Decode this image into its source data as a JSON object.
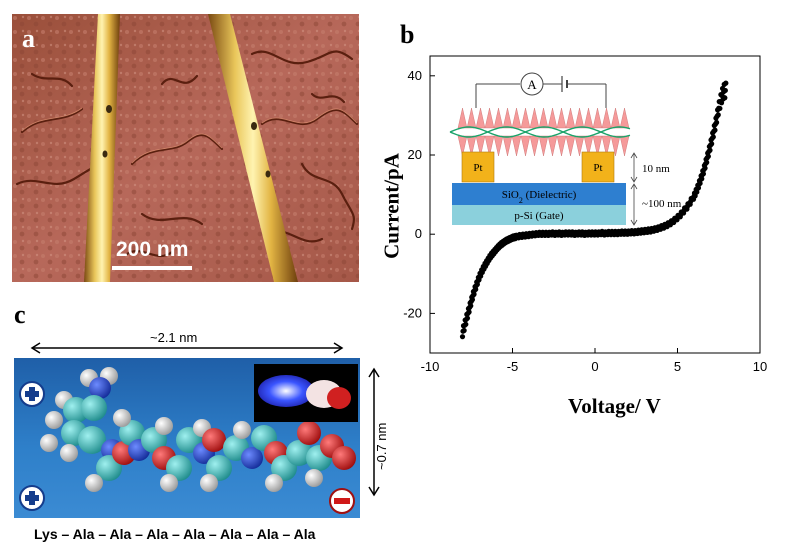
{
  "panels": {
    "a": {
      "label": "a",
      "scale_bar": "200 nm"
    },
    "b": {
      "label": "b"
    },
    "c": {
      "label": "c"
    }
  },
  "chart_data": {
    "type": "scatter",
    "xlabel": "Voltage/ V",
    "ylabel": "Current/pA",
    "xlim": [
      -10,
      10
    ],
    "ylim": [
      -30,
      45
    ],
    "xticks": [
      "-10",
      "-5",
      "0",
      "5",
      "10"
    ],
    "yticks": [
      "-20",
      "0",
      "20",
      "40"
    ],
    "series": [
      {
        "color": "#000000",
        "x": [
          -8.0,
          -7.9,
          -7.8,
          -7.7,
          -7.6,
          -7.5,
          -7.4,
          -7.3,
          -7.2,
          -7.1,
          -7.0,
          -6.9,
          -6.8,
          -6.7,
          -6.6,
          -6.5,
          -6.4,
          -6.3,
          -6.2,
          -6.1,
          -6.0,
          -5.9,
          -5.8,
          -5.7,
          -5.6,
          -5.5,
          -5.4,
          -5.3,
          -5.2,
          -5.1,
          -5.0,
          -4.9,
          -4.8,
          -4.6,
          -4.4,
          -4.2,
          -4.0,
          -3.8,
          -3.6,
          -3.4,
          -3.2,
          -3.0,
          -2.8,
          -2.6,
          -2.4,
          -2.2,
          -2.0,
          -1.8,
          -1.6,
          -1.4,
          -1.2,
          -1.0,
          -0.8,
          -0.6,
          -0.4,
          -0.2,
          0.0,
          0.2,
          0.4,
          0.6,
          0.8,
          1.0,
          1.2,
          1.4,
          1.6,
          1.8,
          2.0,
          2.2,
          2.4,
          2.6,
          2.8,
          3.0,
          3.2,
          3.4,
          3.6,
          3.8,
          4.0,
          4.2,
          4.4,
          4.6,
          4.8,
          5.0,
          5.2,
          5.4,
          5.6,
          5.8,
          6.0,
          6.1,
          6.2,
          6.3,
          6.4,
          6.5,
          6.6,
          6.7,
          6.8,
          6.9,
          7.0,
          7.1,
          7.2,
          7.3,
          7.4,
          7.5,
          7.6,
          7.7,
          7.8,
          7.9
        ],
        "y": [
          -24.5,
          -23.0,
          -21.5,
          -20.0,
          -18.5,
          -17.0,
          -15.5,
          -14.2,
          -13.0,
          -11.8,
          -10.7,
          -9.8,
          -8.9,
          -8.1,
          -7.4,
          -6.7,
          -6.0,
          -5.4,
          -4.9,
          -4.4,
          -3.9,
          -3.4,
          -3.0,
          -2.6,
          -2.3,
          -2.0,
          -1.7,
          -1.5,
          -1.3,
          -1.1,
          -0.9,
          -0.8,
          -0.7,
          -0.5,
          -0.4,
          -0.3,
          -0.2,
          -0.1,
          0.0,
          0.1,
          0.1,
          0.1,
          0.1,
          0.2,
          0.1,
          0.2,
          0.1,
          0.2,
          0.2,
          0.2,
          0.1,
          0.2,
          0.2,
          0.1,
          0.2,
          0.2,
          0.2,
          0.2,
          0.3,
          0.2,
          0.3,
          0.3,
          0.3,
          0.3,
          0.4,
          0.4,
          0.4,
          0.5,
          0.5,
          0.6,
          0.7,
          0.8,
          0.9,
          1.0,
          1.2,
          1.4,
          1.7,
          2.0,
          2.4,
          2.9,
          3.5,
          4.2,
          5.0,
          6.0,
          7.0,
          8.3,
          9.6,
          10.5,
          11.5,
          12.6,
          13.8,
          15.0,
          16.3,
          17.8,
          19.3,
          20.9,
          22.5,
          24.2,
          26.0,
          27.8,
          29.8,
          31.8,
          33.5,
          35.0,
          36.0,
          36.3
        ]
      }
    ]
  },
  "inset": {
    "meter": "A",
    "electrode_left": "Pt",
    "electrode_right": "Pt",
    "dielectric": "SiO",
    "dielectric_sub": "2",
    "dielectric_suffix": " (Dielectric)",
    "gate": "p-Si (Gate)",
    "dim_10": "10 nm",
    "dim_100": "~100 nm"
  },
  "molecule": {
    "width_label": "~2.1 nm",
    "height_label": "~0.7 nm",
    "sequence": "Lys – Ala – Ala – Ala – Ala – Ala – Ala – Ala",
    "plus_symbol": "+",
    "minus_symbol": "–",
    "colors": {
      "carbon": "#33b2b2",
      "oxygen": "#cc1a1a",
      "nitrogen": "#1d3fbf",
      "hydrogen": "#d9d9d9"
    }
  }
}
